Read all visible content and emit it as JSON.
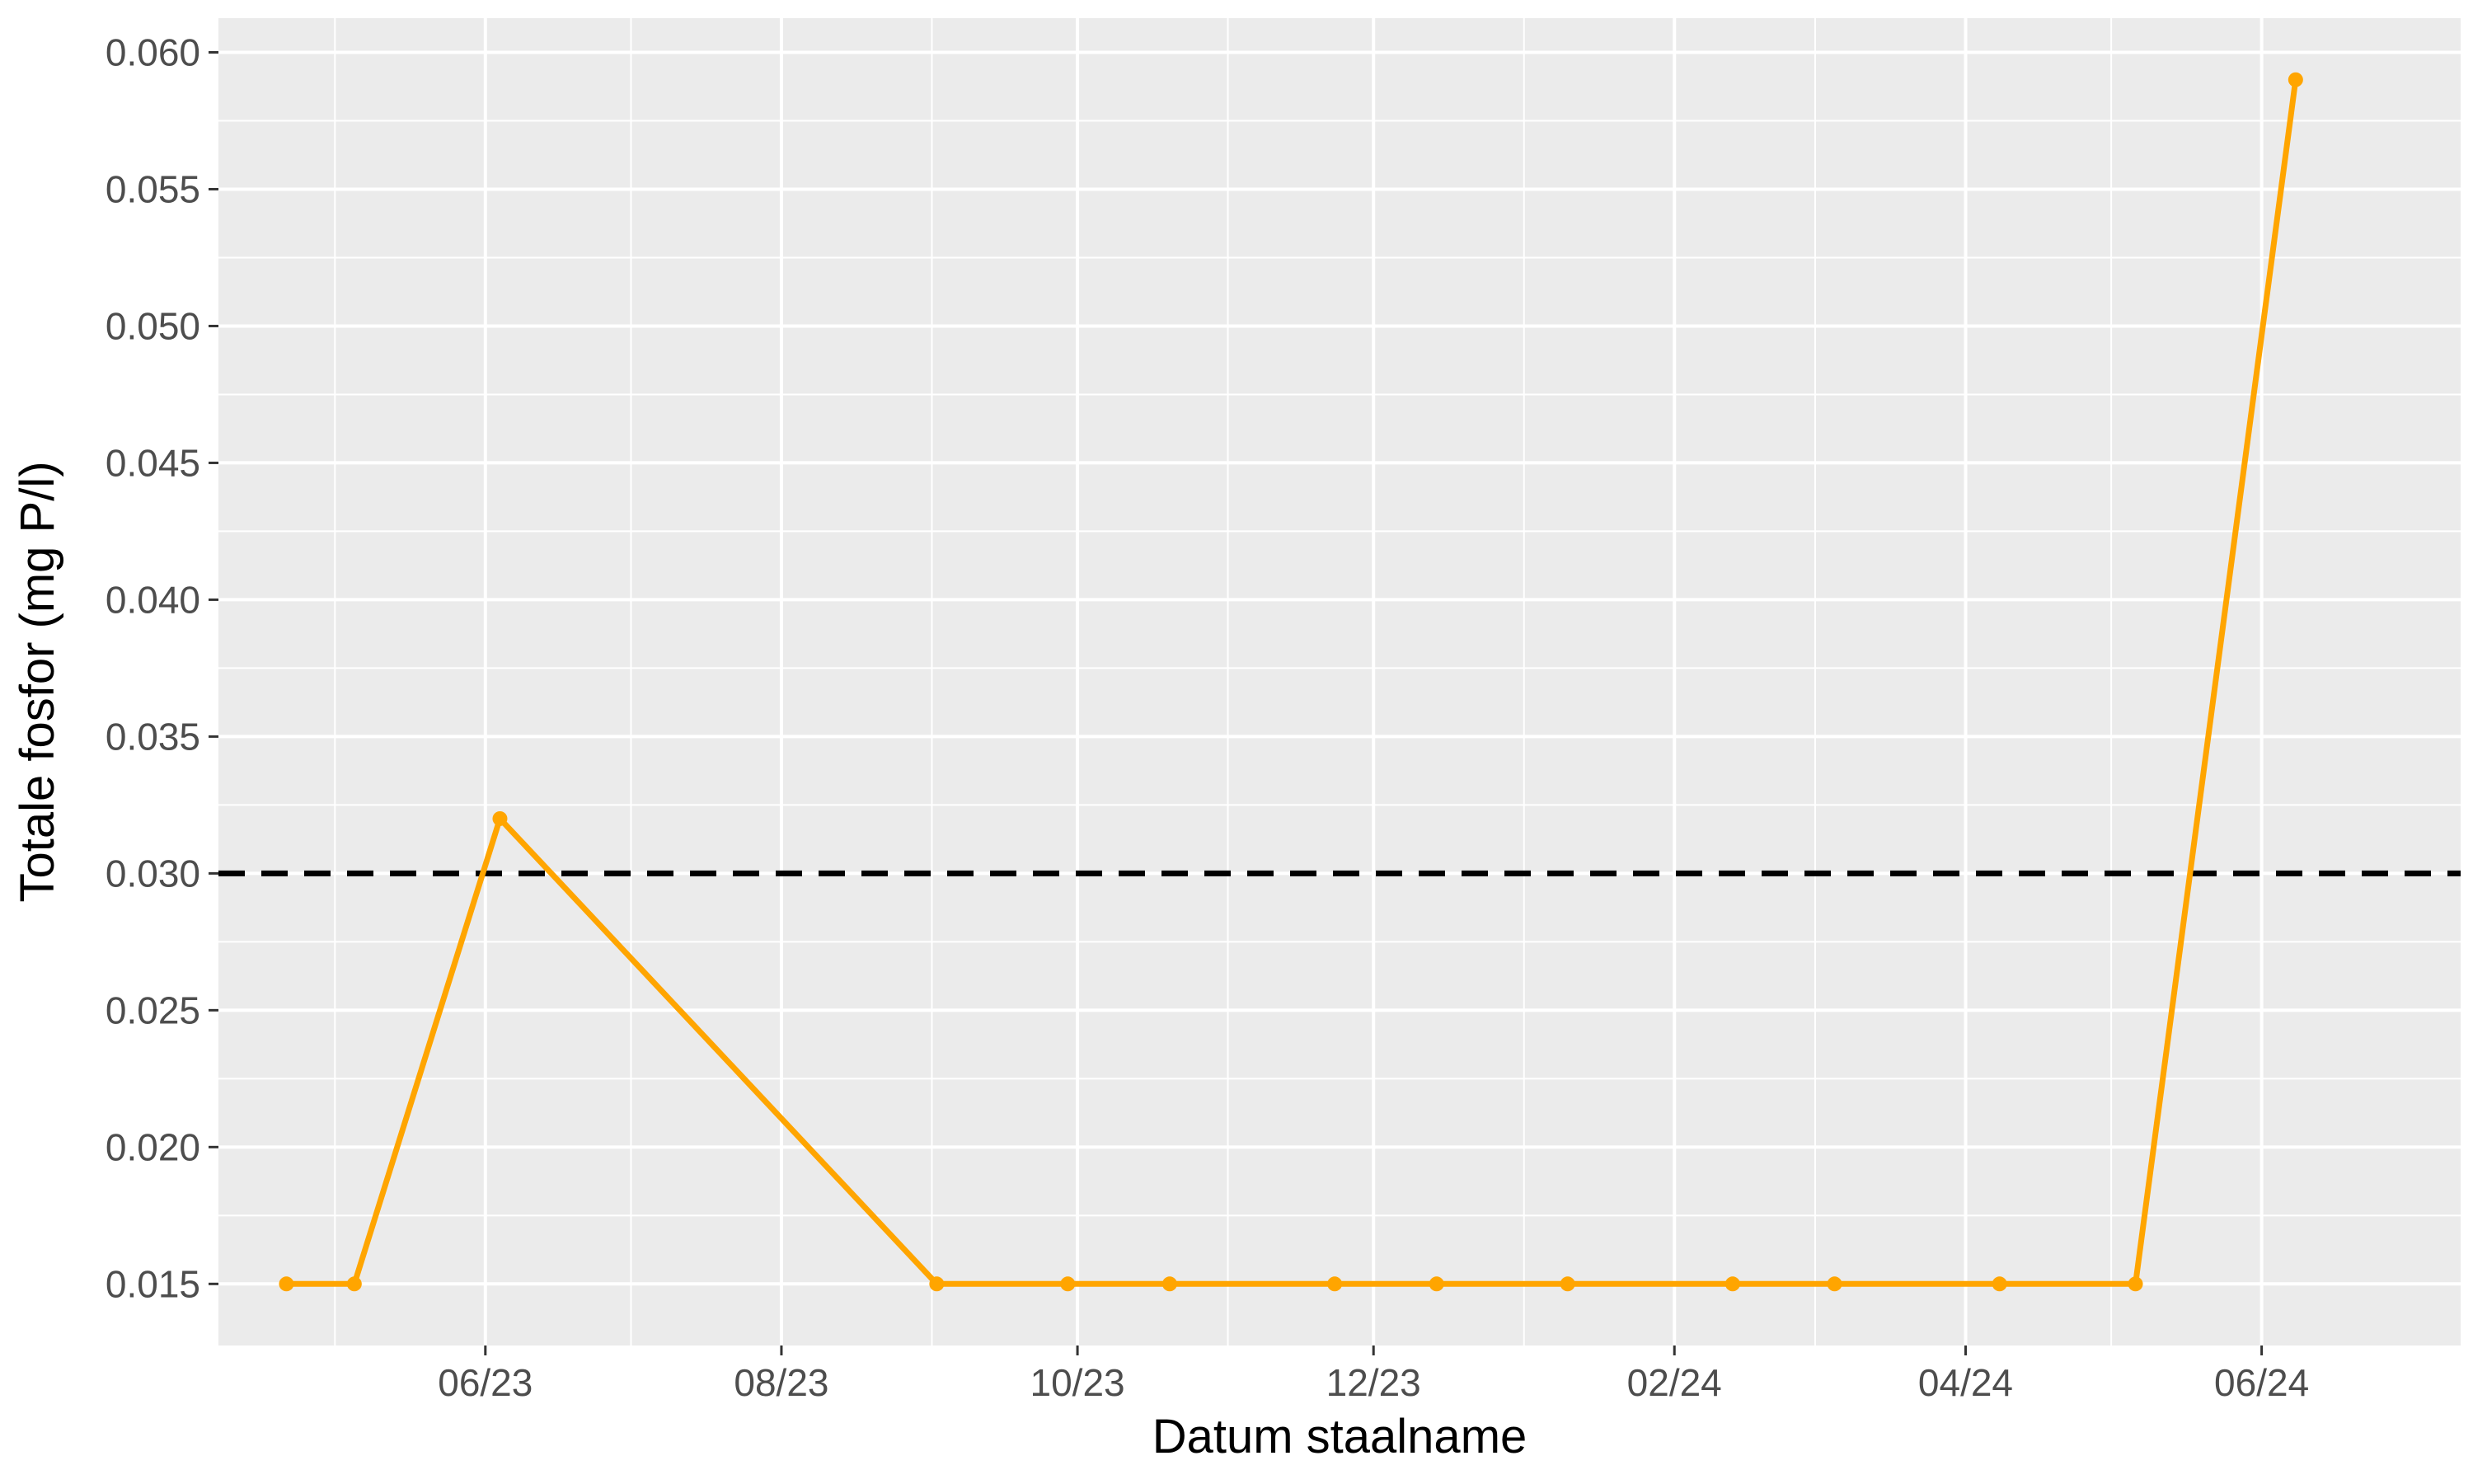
{
  "chart_data": {
    "type": "line",
    "title": "",
    "xlabel": "Datum staalname",
    "ylabel": "Totale fosfor (mg P/l)",
    "x_tick_labels": [
      "06/23",
      "08/23",
      "10/23",
      "12/23",
      "02/24",
      "04/24",
      "06/24"
    ],
    "x_ticks": [
      "2023-06-01",
      "2023-08-01",
      "2023-10-01",
      "2023-12-01",
      "2024-02-01",
      "2024-04-01",
      "2024-06-01"
    ],
    "x_minor_ticks": [
      "2023-05-01",
      "2023-07-01",
      "2023-09-01",
      "2023-11-01",
      "2024-01-01",
      "2024-03-01",
      "2024-05-01"
    ],
    "y_tick_labels": [
      "0.015",
      "0.020",
      "0.025",
      "0.030",
      "0.035",
      "0.040",
      "0.045",
      "0.050",
      "0.055",
      "0.060"
    ],
    "y_ticks": [
      0.015,
      0.02,
      0.025,
      0.03,
      0.035,
      0.04,
      0.045,
      0.05,
      0.055,
      0.06
    ],
    "xlim": [
      "2023-04-07",
      "2024-07-12"
    ],
    "ylim": [
      0.01275,
      0.06125
    ],
    "grid": true,
    "series": [
      {
        "x": [
          "2023-04-21",
          "2023-05-05",
          "2023-06-04",
          "2023-09-02",
          "2023-09-29",
          "2023-10-20",
          "2023-11-23",
          "2023-12-14",
          "2024-01-10",
          "2024-02-13",
          "2024-03-05",
          "2024-04-08",
          "2024-05-06",
          "2024-06-08"
        ],
        "y": [
          0.015,
          0.015,
          0.032,
          0.015,
          0.015,
          0.015,
          0.015,
          0.015,
          0.015,
          0.015,
          0.015,
          0.015,
          0.015,
          0.059
        ],
        "color": "#FFA500"
      }
    ],
    "reference_line": {
      "y": 0.03,
      "style": "dashed",
      "color": "#000000"
    },
    "panel_background": "#EBEBEB",
    "grid_color": "#FFFFFF"
  }
}
